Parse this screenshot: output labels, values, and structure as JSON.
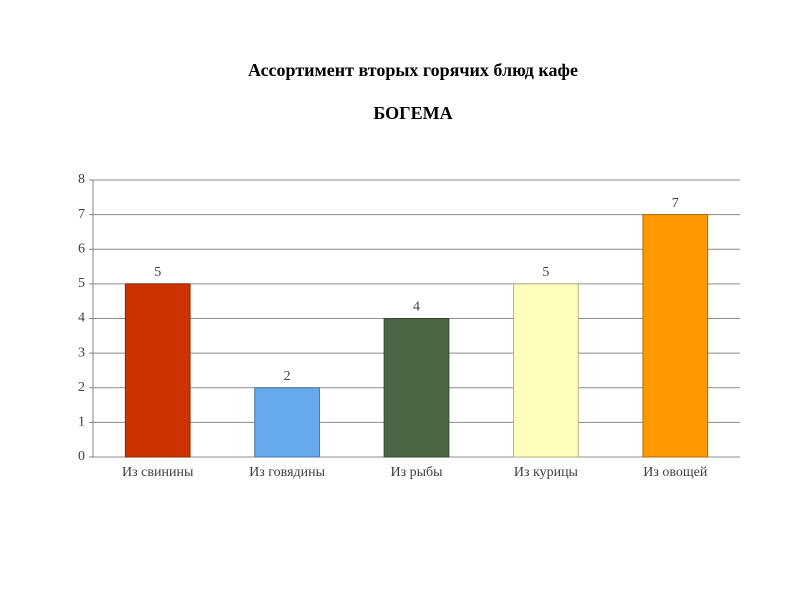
{
  "chart_data": {
    "type": "bar",
    "title": "Ассортимент вторых горячих блюд кафе",
    "subtitle": "БОГЕМА",
    "categories": [
      "Из свинины",
      "Из говядины",
      "Из рыбы",
      "Из курицы",
      "Из овощей"
    ],
    "values": [
      5,
      2,
      4,
      5,
      7
    ],
    "colors": [
      "#cc3300",
      "#66aaee",
      "#4a6645",
      "#ffffbb",
      "#ff9900"
    ],
    "ylim": [
      0,
      8
    ],
    "yticks": [
      0,
      1,
      2,
      3,
      4,
      5,
      6,
      7,
      8
    ],
    "grid": true
  }
}
